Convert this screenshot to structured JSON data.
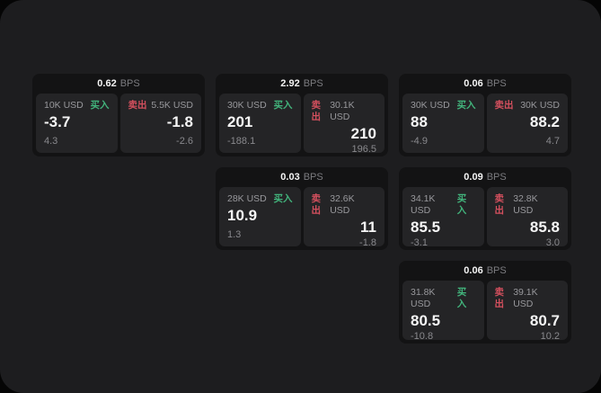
{
  "colors": {
    "green": "#42b47c",
    "red": "#d4505e"
  },
  "cards": [
    {
      "spread": "0.62",
      "spread_unit": "BPS",
      "buy": {
        "amount": "10K USD",
        "side": "买入",
        "price": "-3.7",
        "delta": "4.3"
      },
      "sell": {
        "amount": "5.5K USD",
        "side": "卖出",
        "price": "-1.8",
        "delta": "-2.6"
      }
    },
    {
      "spread": "2.92",
      "spread_unit": "BPS",
      "buy": {
        "amount": "30K USD",
        "side": "买入",
        "price": "201",
        "delta": "-188.1"
      },
      "sell": {
        "amount": "30.1K USD",
        "side": "卖出",
        "price": "210",
        "delta": "196.5"
      }
    },
    {
      "spread": "0.06",
      "spread_unit": "BPS",
      "buy": {
        "amount": "30K USD",
        "side": "买入",
        "price": "88",
        "delta": "-4.9"
      },
      "sell": {
        "amount": "30K USD",
        "side": "卖出",
        "price": "88.2",
        "delta": "4.7"
      }
    },
    {
      "spread": "0.03",
      "spread_unit": "BPS",
      "buy": {
        "amount": "28K USD",
        "side": "买入",
        "price": "10.9",
        "delta": "1.3"
      },
      "sell": {
        "amount": "32.6K USD",
        "side": "卖出",
        "price": "11",
        "delta": "-1.8"
      }
    },
    {
      "spread": "0.09",
      "spread_unit": "BPS",
      "buy": {
        "amount": "34.1K USD",
        "side": "买入",
        "price": "85.5",
        "delta": "-3.1"
      },
      "sell": {
        "amount": "32.8K USD",
        "side": "卖出",
        "price": "85.8",
        "delta": "3.0"
      }
    },
    {
      "spread": "0.06",
      "spread_unit": "BPS",
      "buy": {
        "amount": "31.8K USD",
        "side": "买入",
        "price": "80.5",
        "delta": "-10.8"
      },
      "sell": {
        "amount": "39.1K USD",
        "side": "卖出",
        "price": "80.7",
        "delta": "10.2"
      }
    }
  ]
}
